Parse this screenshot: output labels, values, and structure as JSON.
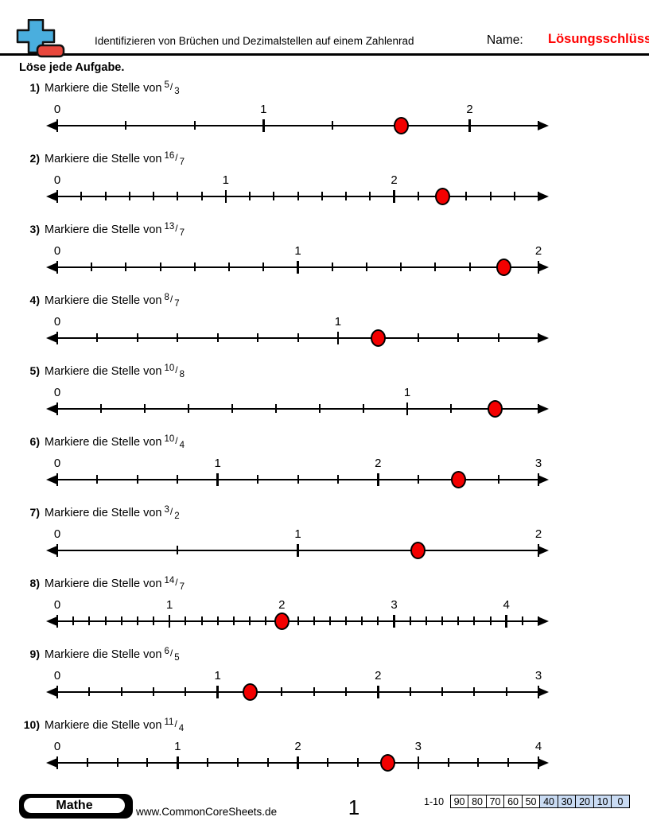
{
  "page": {
    "header": {
      "title": "Identifizieren von Brüchen und Dezimalstellen auf einem Zahlenrad",
      "name_label": "Name:",
      "answer_key_label": "Lösungsschlüssel",
      "instruction": "Löse jede Aufgabe."
    },
    "prompt_prefix": "Markiere die Stelle von",
    "problems": [
      {
        "number_label": "1)",
        "numerator": "5",
        "denominator": "3",
        "line": {
          "den": 3,
          "end": 7,
          "dot": 5,
          "labels": [
            {
              "text": "0",
              "at": 0
            },
            {
              "text": "1",
              "at": 3
            },
            {
              "text": "2",
              "at": 6
            }
          ]
        }
      },
      {
        "number_label": "2)",
        "numerator": "16",
        "denominator": "7",
        "line": {
          "den": 7,
          "end": 20,
          "dot": 16,
          "labels": [
            {
              "text": "0",
              "at": 0
            },
            {
              "text": "1",
              "at": 7
            },
            {
              "text": "2",
              "at": 14
            }
          ]
        }
      },
      {
        "number_label": "3)",
        "numerator": "13",
        "denominator": "7",
        "line": {
          "den": 7,
          "end": 14,
          "dot": 13,
          "labels": [
            {
              "text": "0",
              "at": 0
            },
            {
              "text": "1",
              "at": 7
            },
            {
              "text": "2",
              "at": 14
            }
          ]
        }
      },
      {
        "number_label": "4)",
        "numerator": "8",
        "denominator": "7",
        "line": {
          "den": 7,
          "end": 12,
          "dot": 8,
          "labels": [
            {
              "text": "0",
              "at": 0
            },
            {
              "text": "1",
              "at": 7
            }
          ]
        }
      },
      {
        "number_label": "5)",
        "numerator": "10",
        "denominator": "8",
        "line": {
          "den": 8,
          "end": 11,
          "dot": 10,
          "labels": [
            {
              "text": "0",
              "at": 0
            },
            {
              "text": "1",
              "at": 8
            }
          ]
        }
      },
      {
        "number_label": "6)",
        "numerator": "10",
        "denominator": "4",
        "line": {
          "den": 4,
          "end": 12,
          "dot": 10,
          "labels": [
            {
              "text": "0",
              "at": 0
            },
            {
              "text": "1",
              "at": 4
            },
            {
              "text": "2",
              "at": 8
            },
            {
              "text": "3",
              "at": 12
            }
          ]
        }
      },
      {
        "number_label": "7)",
        "numerator": "3",
        "denominator": "2",
        "line": {
          "den": 2,
          "end": 4,
          "dot": 3,
          "labels": [
            {
              "text": "0",
              "at": 0
            },
            {
              "text": "1",
              "at": 2
            },
            {
              "text": "2",
              "at": 4
            }
          ]
        }
      },
      {
        "number_label": "8)",
        "numerator": "14",
        "denominator": "7",
        "line": {
          "den": 7,
          "end": 30,
          "dot": 14,
          "labels": [
            {
              "text": "0",
              "at": 0
            },
            {
              "text": "1",
              "at": 7
            },
            {
              "text": "2",
              "at": 14
            },
            {
              "text": "3",
              "at": 21
            },
            {
              "text": "4",
              "at": 28
            }
          ]
        }
      },
      {
        "number_label": "9)",
        "numerator": "6",
        "denominator": "5",
        "line": {
          "den": 5,
          "end": 15,
          "dot": 6,
          "labels": [
            {
              "text": "0",
              "at": 0
            },
            {
              "text": "1",
              "at": 5
            },
            {
              "text": "2",
              "at": 10
            },
            {
              "text": "3",
              "at": 15
            }
          ]
        }
      },
      {
        "number_label": "10)",
        "numerator": "11",
        "denominator": "4",
        "line": {
          "den": 4,
          "end": 16,
          "dot": 11,
          "labels": [
            {
              "text": "0",
              "at": 0
            },
            {
              "text": "1",
              "at": 4
            },
            {
              "text": "2",
              "at": 8
            },
            {
              "text": "3",
              "at": 12
            },
            {
              "text": "4",
              "at": 16
            }
          ]
        }
      }
    ],
    "footer": {
      "subject_badge": "Mathe",
      "website": "www.CommonCoreSheets.de",
      "page_number": "1",
      "score_range_label": "1-10",
      "score_cells": [
        {
          "text": "90",
          "highlight": false
        },
        {
          "text": "80",
          "highlight": false
        },
        {
          "text": "70",
          "highlight": false
        },
        {
          "text": "60",
          "highlight": false
        },
        {
          "text": "50",
          "highlight": false
        },
        {
          "text": "40",
          "highlight": true
        },
        {
          "text": "30",
          "highlight": true
        },
        {
          "text": "20",
          "highlight": true
        },
        {
          "text": "10",
          "highlight": true
        },
        {
          "text": "0",
          "highlight": true
        }
      ]
    },
    "colors": {
      "answer_key_red": "#ff0000",
      "dot_fill": "#f30000",
      "logo_blue": "#4aaede",
      "logo_red": "#e8473c",
      "score_highlight": "#c9dbf3"
    }
  }
}
